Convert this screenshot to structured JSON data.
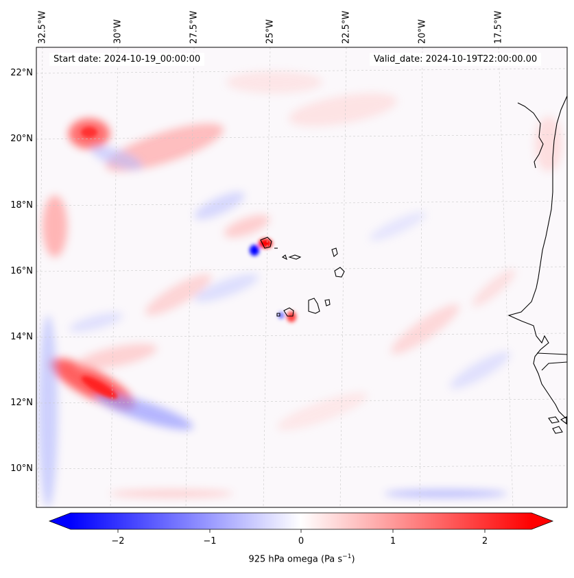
{
  "map": {
    "lon_labels": [
      "32.5°W",
      "30°W",
      "27.5°W",
      "25°W",
      "22.5°W",
      "20°W",
      "17.5°W"
    ],
    "lat_labels": [
      "22°N",
      "20°N",
      "18°N",
      "16°N",
      "14°N",
      "12°N",
      "10°N"
    ],
    "start_date": "Start date: 2024-10-19_00:00:00",
    "valid_date": "Valid_date: 2024-10-19T22:00:00.00"
  },
  "colorbar": {
    "ticks": [
      "−2",
      "−1",
      "0",
      "1",
      "2"
    ],
    "label_main": "925 hPa omega (Pa s",
    "label_exp": "−1",
    "label_end": ")",
    "range": [
      -2.7,
      2.7
    ],
    "color_low": "#0000ff",
    "color_mid": "#ffffff",
    "color_high": "#ff0000"
  }
}
